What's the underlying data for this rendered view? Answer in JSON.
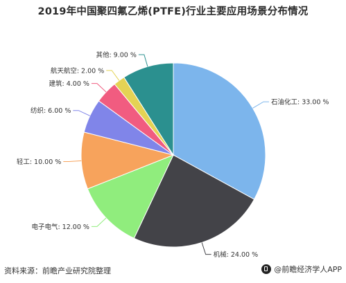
{
  "chart_data": {
    "type": "pie",
    "title": "2019年中国聚四氟乙烯(PTFE)行业主要应用场景分布情况",
    "start_angle_deg": 90,
    "direction": "clockwise",
    "slices": [
      {
        "name": "石油化工",
        "value": 33.0,
        "label": "石油化工: 33.00 %",
        "color": "#7cb5ec"
      },
      {
        "name": "机械",
        "value": 24.0,
        "label": "机械: 24.00 %",
        "color": "#434348"
      },
      {
        "name": "电子电气",
        "value": 12.0,
        "label": "电子电气: 12.00 %",
        "color": "#90ed7d"
      },
      {
        "name": "轻工",
        "value": 10.0,
        "label": "轻工: 10.00 %",
        "color": "#f7a35c"
      },
      {
        "name": "纺织",
        "value": 6.0,
        "label": "纺织: 6.00 %",
        "color": "#8085e9"
      },
      {
        "name": "建筑",
        "value": 4.0,
        "label": "建筑: 4.00 %",
        "color": "#f15c80"
      },
      {
        "name": "航天航空",
        "value": 2.0,
        "label": "航天航空: 2.00 %",
        "color": "#e4d354"
      },
      {
        "name": "其他",
        "value": 9.0,
        "label": "其他: 9.00 %",
        "color": "#2b908f"
      }
    ]
  },
  "footer": {
    "source": "资料来源：前瞻产业研究院整理",
    "brand": "@前瞻经济学人APP"
  }
}
